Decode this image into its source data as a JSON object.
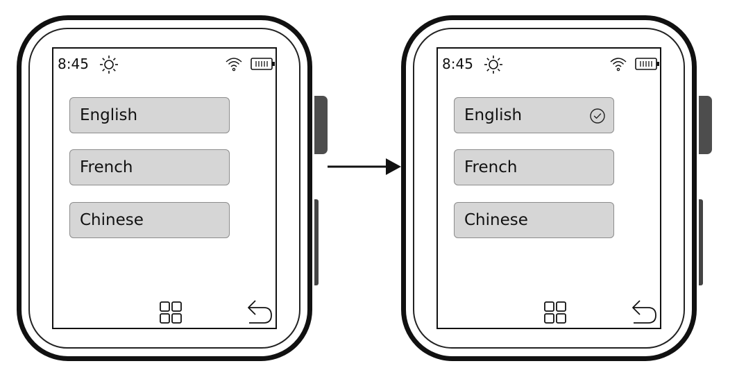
{
  "screens": [
    {
      "status": {
        "time": "8:45",
        "icons": [
          "brightness-icon",
          "wifi-icon",
          "battery-icon"
        ]
      },
      "languages": [
        {
          "label": "English",
          "selected": false
        },
        {
          "label": "French",
          "selected": false
        },
        {
          "label": "Chinese",
          "selected": false
        }
      ],
      "nav_icons": [
        "apps-grid-icon",
        "back-icon"
      ]
    },
    {
      "status": {
        "time": "8:45",
        "icons": [
          "brightness-icon",
          "wifi-icon",
          "battery-icon"
        ]
      },
      "languages": [
        {
          "label": "English",
          "selected": true
        },
        {
          "label": "French",
          "selected": false
        },
        {
          "label": "Chinese",
          "selected": false
        }
      ],
      "nav_icons": [
        "apps-grid-icon",
        "back-icon"
      ]
    }
  ],
  "colors": {
    "button_fill": "#d6d6d6",
    "button_border": "#8c8c8c",
    "outline": "#111111",
    "crown": "#4d4d4d"
  }
}
